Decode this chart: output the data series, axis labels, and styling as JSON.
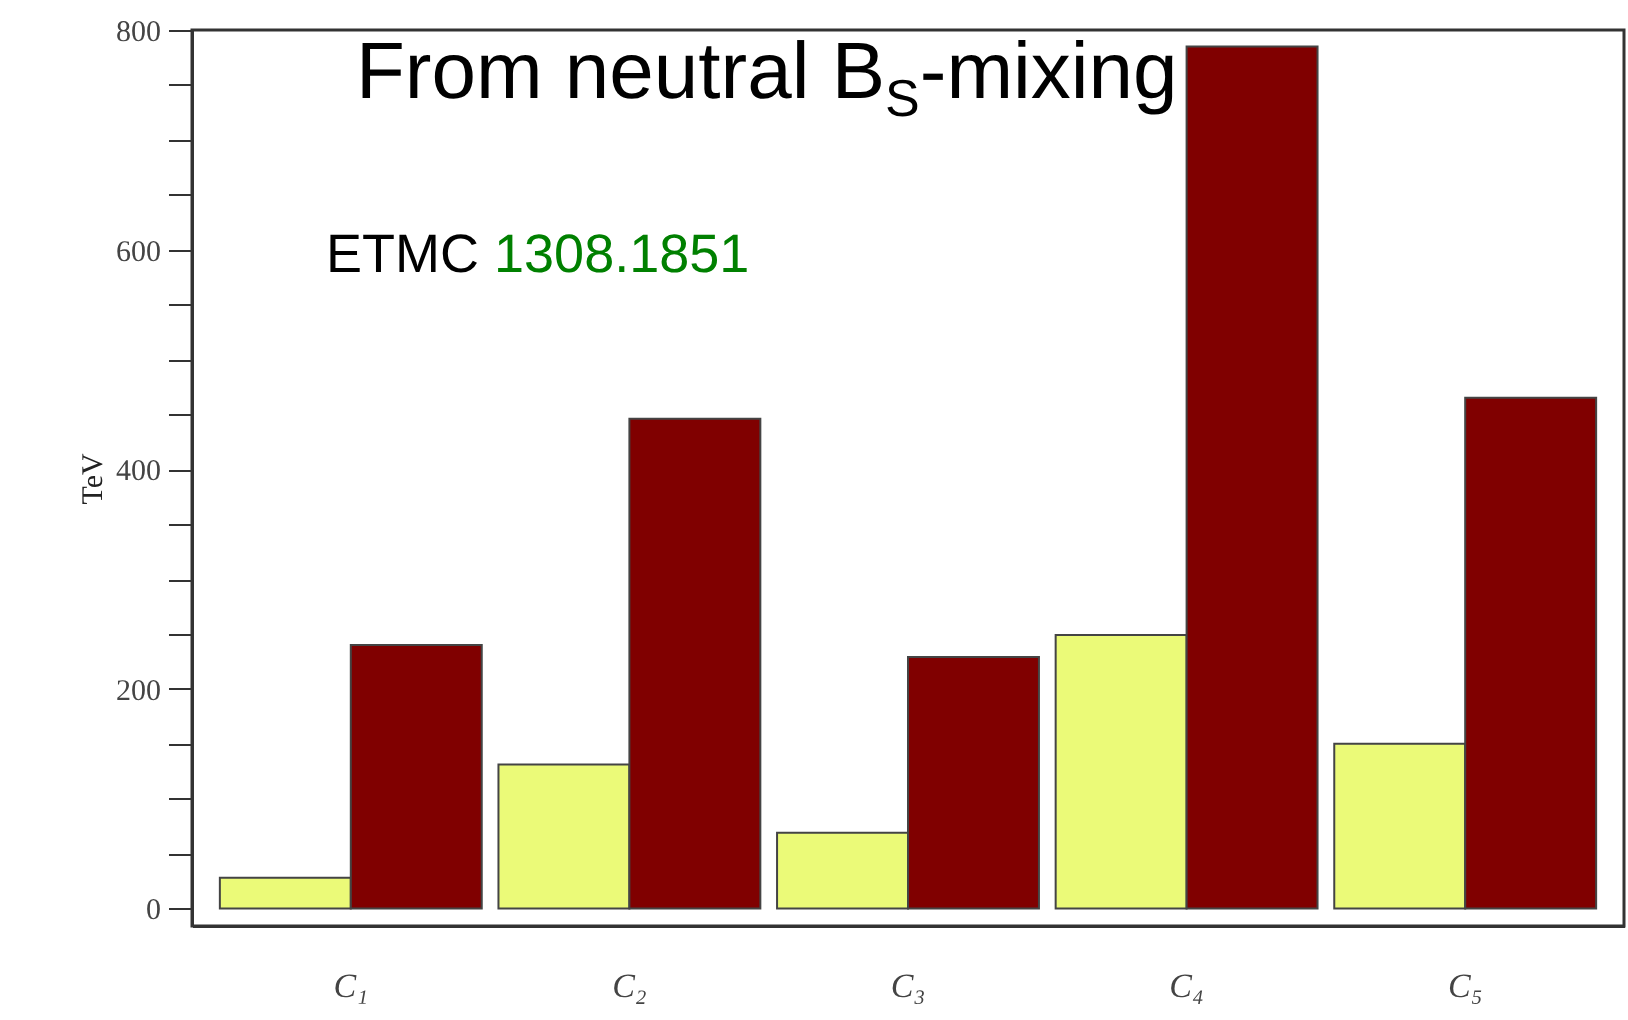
{
  "chart_data": {
    "type": "bar",
    "title": "From neutral B$_{S}$-mixing",
    "ylabel": "TeV",
    "annotations": [
      "ETMC",
      "1308.1851"
    ],
    "categories": [
      "C₁",
      "C₂",
      "C₃",
      "C₄",
      "C₅"
    ],
    "series": [
      {
        "color": "#ebfa78",
        "values": [
          28,
          131,
          69,
          249,
          150
        ]
      },
      {
        "color": "#800000",
        "values": [
          240,
          446,
          229,
          785,
          465
        ]
      }
    ],
    "ylim": [
      -16,
      800
    ],
    "yticks": [
      0,
      {
        "value": 50,
        "label": null
      },
      {
        "value": 100,
        "label": null
      },
      {
        "value": 150,
        "label": null
      },
      200,
      {
        "value": 250,
        "label": null
      },
      {
        "value": 300,
        "label": null
      },
      {
        "value": 350,
        "label": null
      },
      400,
      {
        "value": 450,
        "label": null
      },
      {
        "value": 500,
        "label": null
      },
      {
        "value": 550,
        "label": null
      },
      600,
      {
        "value": 650,
        "label": null
      },
      {
        "value": 700,
        "label": null
      },
      {
        "value": 750,
        "label": null
      },
      800
    ],
    "grid": false
  }
}
